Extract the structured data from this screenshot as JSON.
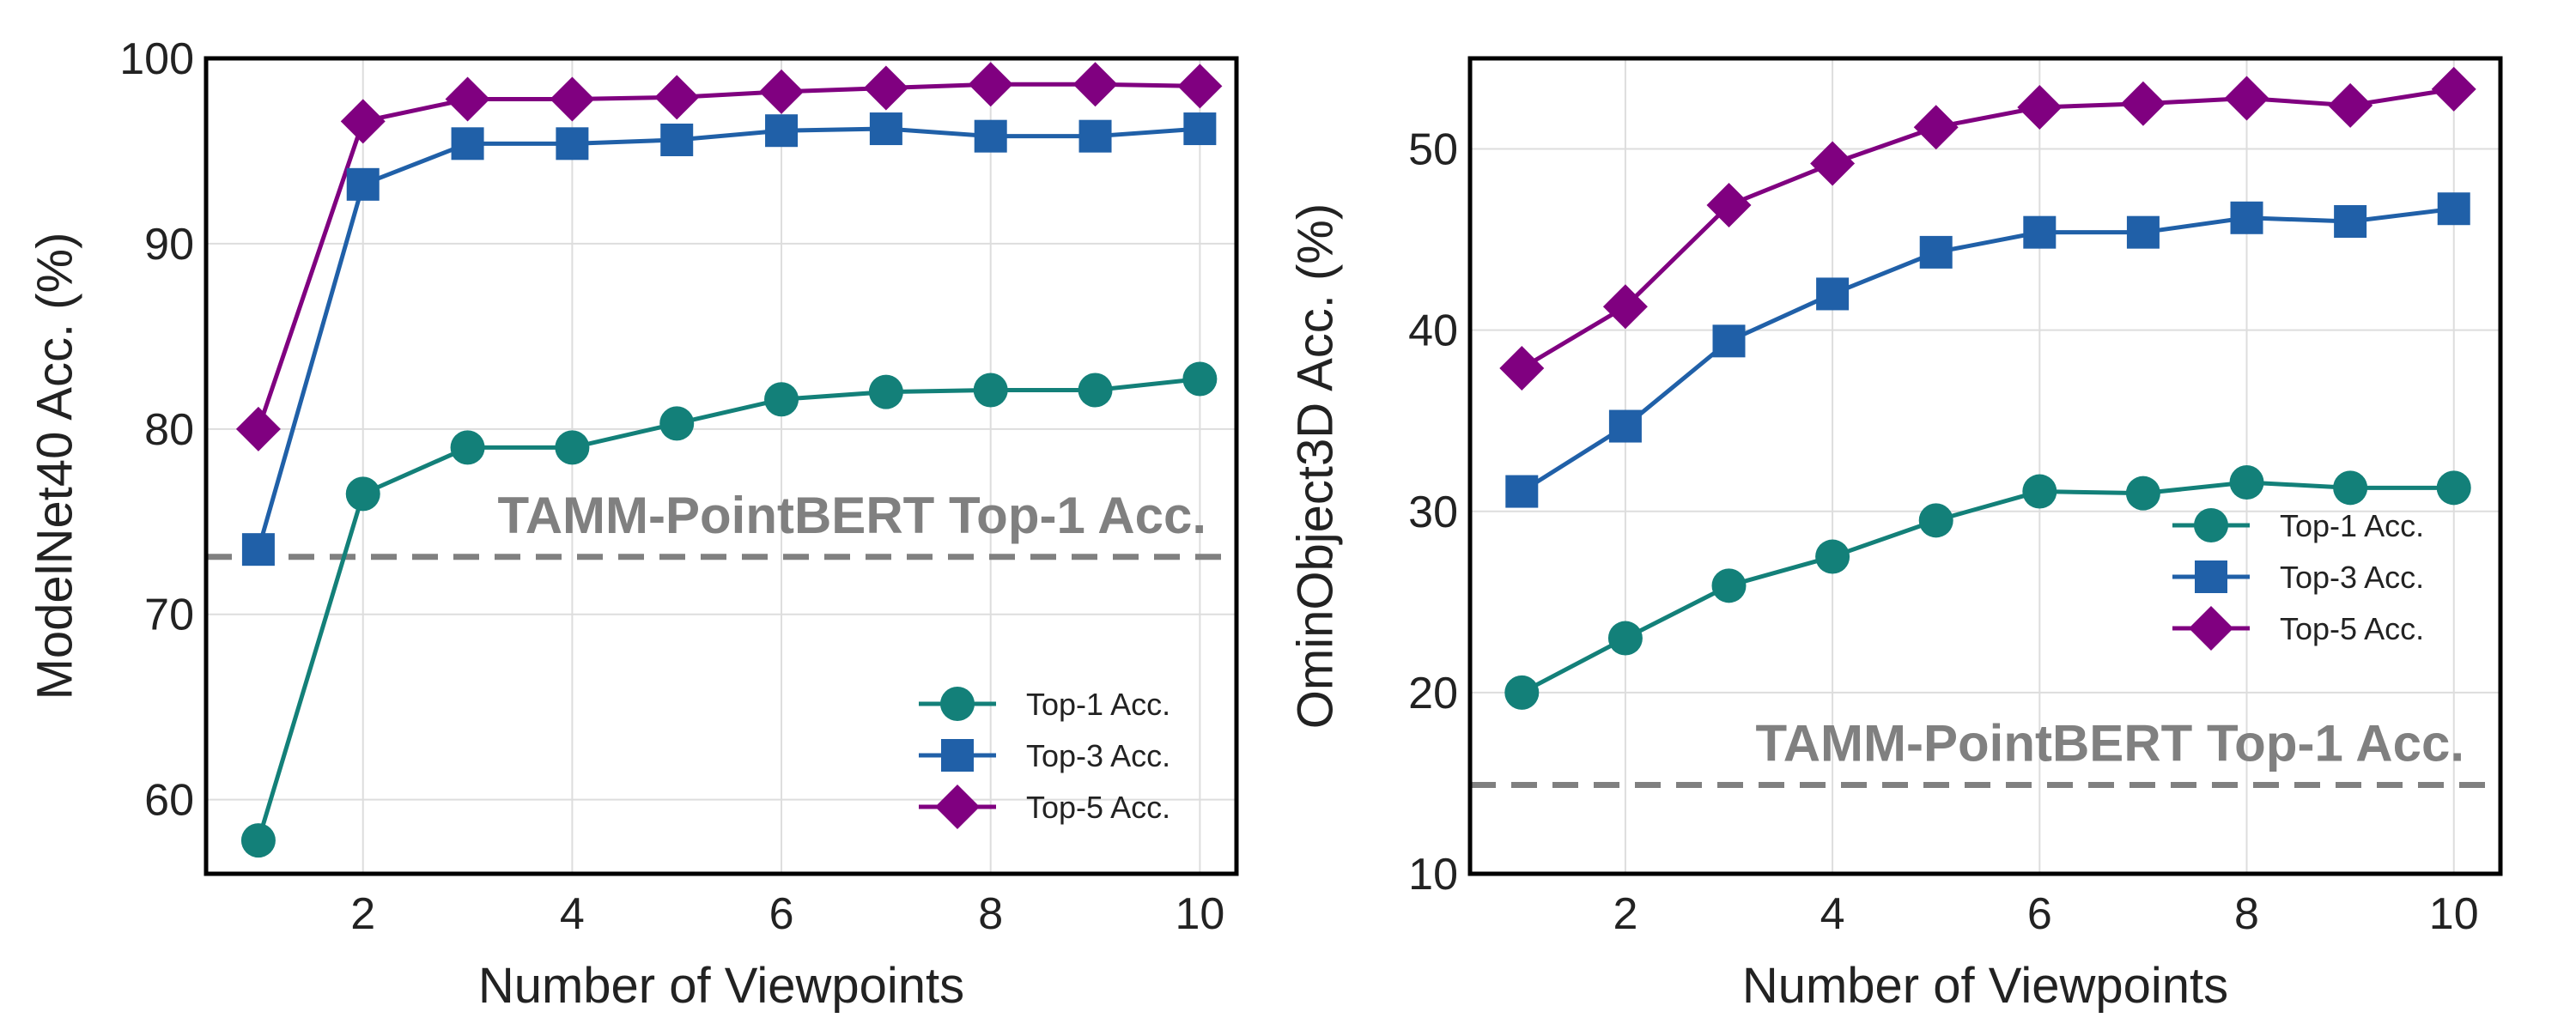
{
  "chart_data": [
    {
      "type": "line",
      "xlabel": "Number of Viewpoints",
      "ylabel": "ModelNet40 Acc. (%)",
      "xlim": [
        0.5,
        10.35
      ],
      "ylim": [
        56,
        100
      ],
      "xticks": [
        2,
        4,
        6,
        8,
        10
      ],
      "yticks": [
        60,
        70,
        80,
        90,
        100
      ],
      "grid": true,
      "legend_position": "lower-right",
      "x": [
        1,
        2,
        3,
        4,
        5,
        6,
        7,
        8,
        9,
        10
      ],
      "series": [
        {
          "name": "Top-1 Acc.",
          "color": "#138079",
          "marker": "circle",
          "values": [
            57.8,
            76.5,
            79.0,
            79.0,
            80.3,
            81.6,
            82.0,
            82.1,
            82.1,
            82.7
          ]
        },
        {
          "name": "Top-3 Acc.",
          "color": "#2060a8",
          "marker": "square",
          "values": [
            73.5,
            93.2,
            95.4,
            95.4,
            95.6,
            96.1,
            96.2,
            95.8,
            95.8,
            96.2
          ]
        },
        {
          "name": "Top-5 Acc.",
          "color": "#800080",
          "marker": "diamond",
          "values": [
            80.0,
            96.6,
            97.8,
            97.8,
            97.9,
            98.2,
            98.4,
            98.6,
            98.6,
            98.5
          ]
        }
      ],
      "reference_line": {
        "y": 73.1,
        "label": "TAMM-PointBERT Top-1 Acc.",
        "color": "#808080",
        "style": "dashed"
      }
    },
    {
      "type": "line",
      "xlabel": "Number of Viewpoints",
      "ylabel": "OminObject3D Acc. (%)",
      "xlim": [
        0.5,
        10.45
      ],
      "ylim": [
        10,
        55
      ],
      "xticks": [
        2,
        4,
        6,
        8,
        10
      ],
      "yticks": [
        10,
        20,
        30,
        40,
        50
      ],
      "grid": true,
      "legend_position": "center-right",
      "x": [
        1,
        2,
        3,
        4,
        5,
        6,
        7,
        8,
        9,
        10
      ],
      "series": [
        {
          "name": "Top-1 Acc.",
          "color": "#138079",
          "marker": "circle",
          "values": [
            20.0,
            23.0,
            25.9,
            27.5,
            29.5,
            31.1,
            31.0,
            31.6,
            31.3,
            31.3
          ]
        },
        {
          "name": "Top-3 Acc.",
          "color": "#2060a8",
          "marker": "square",
          "values": [
            31.1,
            34.7,
            39.4,
            42.0,
            44.3,
            45.4,
            45.4,
            46.2,
            46.0,
            46.7
          ]
        },
        {
          "name": "Top-5 Acc.",
          "color": "#800080",
          "marker": "diamond",
          "values": [
            37.9,
            41.3,
            46.9,
            49.2,
            51.2,
            52.3,
            52.5,
            52.8,
            52.4,
            53.3
          ]
        }
      ],
      "reference_line": {
        "y": 14.9,
        "label": "TAMM-PointBERT Top-1 Acc.",
        "color": "#808080",
        "style": "dashed"
      }
    }
  ]
}
